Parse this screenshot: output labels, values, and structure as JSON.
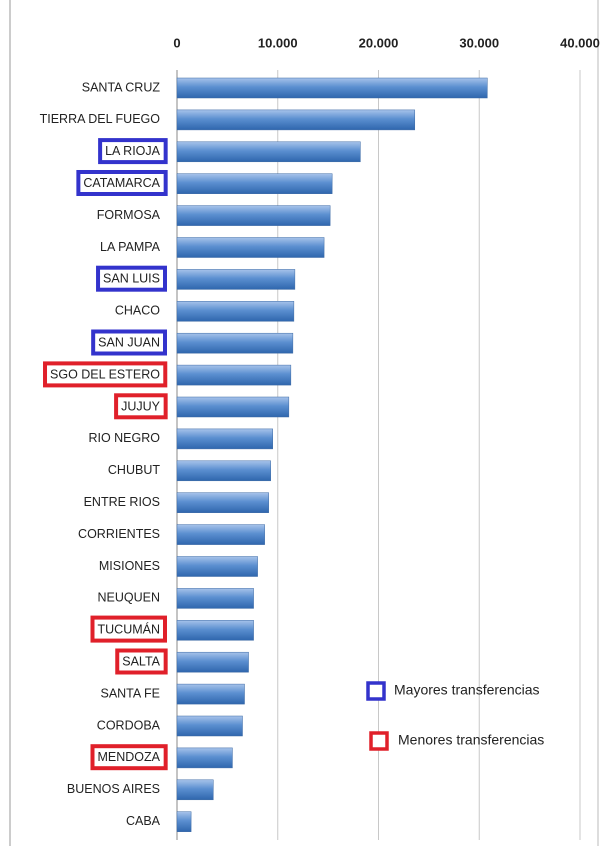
{
  "chart_data": {
    "type": "bar",
    "orientation": "horizontal",
    "categories": [
      "SANTA CRUZ",
      "TIERRA DEL FUEGO",
      "LA RIOJA",
      "CATAMARCA",
      "FORMOSA",
      "LA PAMPA",
      "SAN LUIS",
      "CHACO",
      "SAN JUAN",
      "SGO DEL ESTERO",
      "JUJUY",
      "RIO NEGRO",
      "CHUBUT",
      "ENTRE RIOS",
      "CORRIENTES",
      "MISIONES",
      "NEUQUEN",
      "TUCUMÁN",
      "SALTA",
      "SANTA FE",
      "CORDOBA",
      "MENDOZA",
      "BUENOS AIRES",
      "CABA"
    ],
    "values": [
      30800,
      23600,
      18200,
      15400,
      15200,
      14600,
      11700,
      11600,
      11500,
      11300,
      11100,
      9500,
      9300,
      9100,
      8700,
      8000,
      7600,
      7600,
      7100,
      6700,
      6500,
      5500,
      3600,
      1400
    ],
    "color": "#4f81bd",
    "xlim": [
      0,
      40000
    ],
    "xticks": [
      0,
      {
        "value": 10000,
        "label": "10.000"
      },
      {
        "value": 20000,
        "label": "20.000"
      },
      {
        "value": 30000,
        "label": "30.000"
      },
      {
        "value": 40000,
        "label": "40.000"
      }
    ],
    "grid": true,
    "highlights": [
      {
        "name": "Mayores transferencias",
        "color": "#3333cc",
        "members": [
          2,
          3,
          6,
          8
        ]
      },
      {
        "name": "Menores transferencias",
        "color": "#e0202a",
        "members": [
          9,
          10,
          17,
          18,
          21
        ]
      }
    ]
  }
}
